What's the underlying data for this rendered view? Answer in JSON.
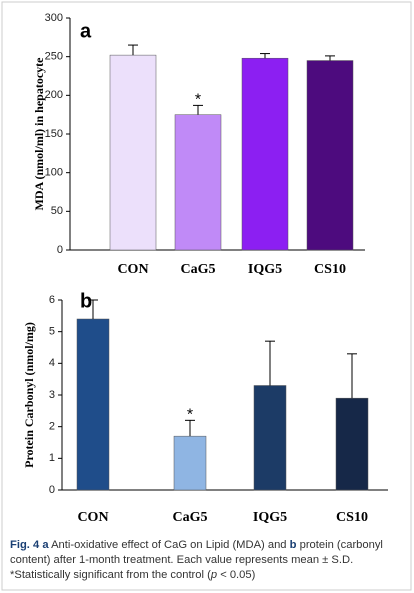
{
  "chart_data": [
    {
      "type": "bar",
      "panel_label": "a",
      "y_label": "MDA (nmol/ml) in hepatocyte",
      "categories": [
        "CON",
        "CaG5",
        "IQG5",
        "CS10"
      ],
      "values": [
        252,
        175,
        248,
        245
      ],
      "errors": [
        13,
        12,
        6,
        6
      ],
      "colors": [
        "#ece0fb",
        "#c08af7",
        "#8c1ff2",
        "#4d0b7e"
      ],
      "ylim": [
        0,
        300
      ],
      "yticks": [
        0,
        50,
        100,
        150,
        200,
        250,
        300
      ],
      "annotation": {
        "text": "*",
        "category": "CaG5"
      }
    },
    {
      "type": "bar",
      "panel_label": "b",
      "y_label": "Protein Carbonyl (nmol/mg)",
      "categories": [
        "CON",
        "CaG5",
        "IQG5",
        "CS10"
      ],
      "values": [
        5.4,
        1.7,
        3.3,
        2.9
      ],
      "errors": [
        0.6,
        0.5,
        1.4,
        1.4
      ],
      "colors": [
        "#1f4d8a",
        "#8fb5e3",
        "#1c3b66",
        "#162848"
      ],
      "ylim": [
        0,
        6
      ],
      "yticks": [
        0,
        1,
        2,
        3,
        4,
        5,
        6
      ],
      "annotation": {
        "text": "*",
        "category": "CaG5"
      }
    }
  ],
  "caption": [
    "Fig. 4",
    "a",
    "Anti-oxidative effect of CaG on Lipid (MDA) and",
    "b",
    "protein (carbonyl content) after 1-month treatment. Each value represents mean ± S.D. *Statistically significant from the control (",
    "p",
    "< 0.05)"
  ]
}
